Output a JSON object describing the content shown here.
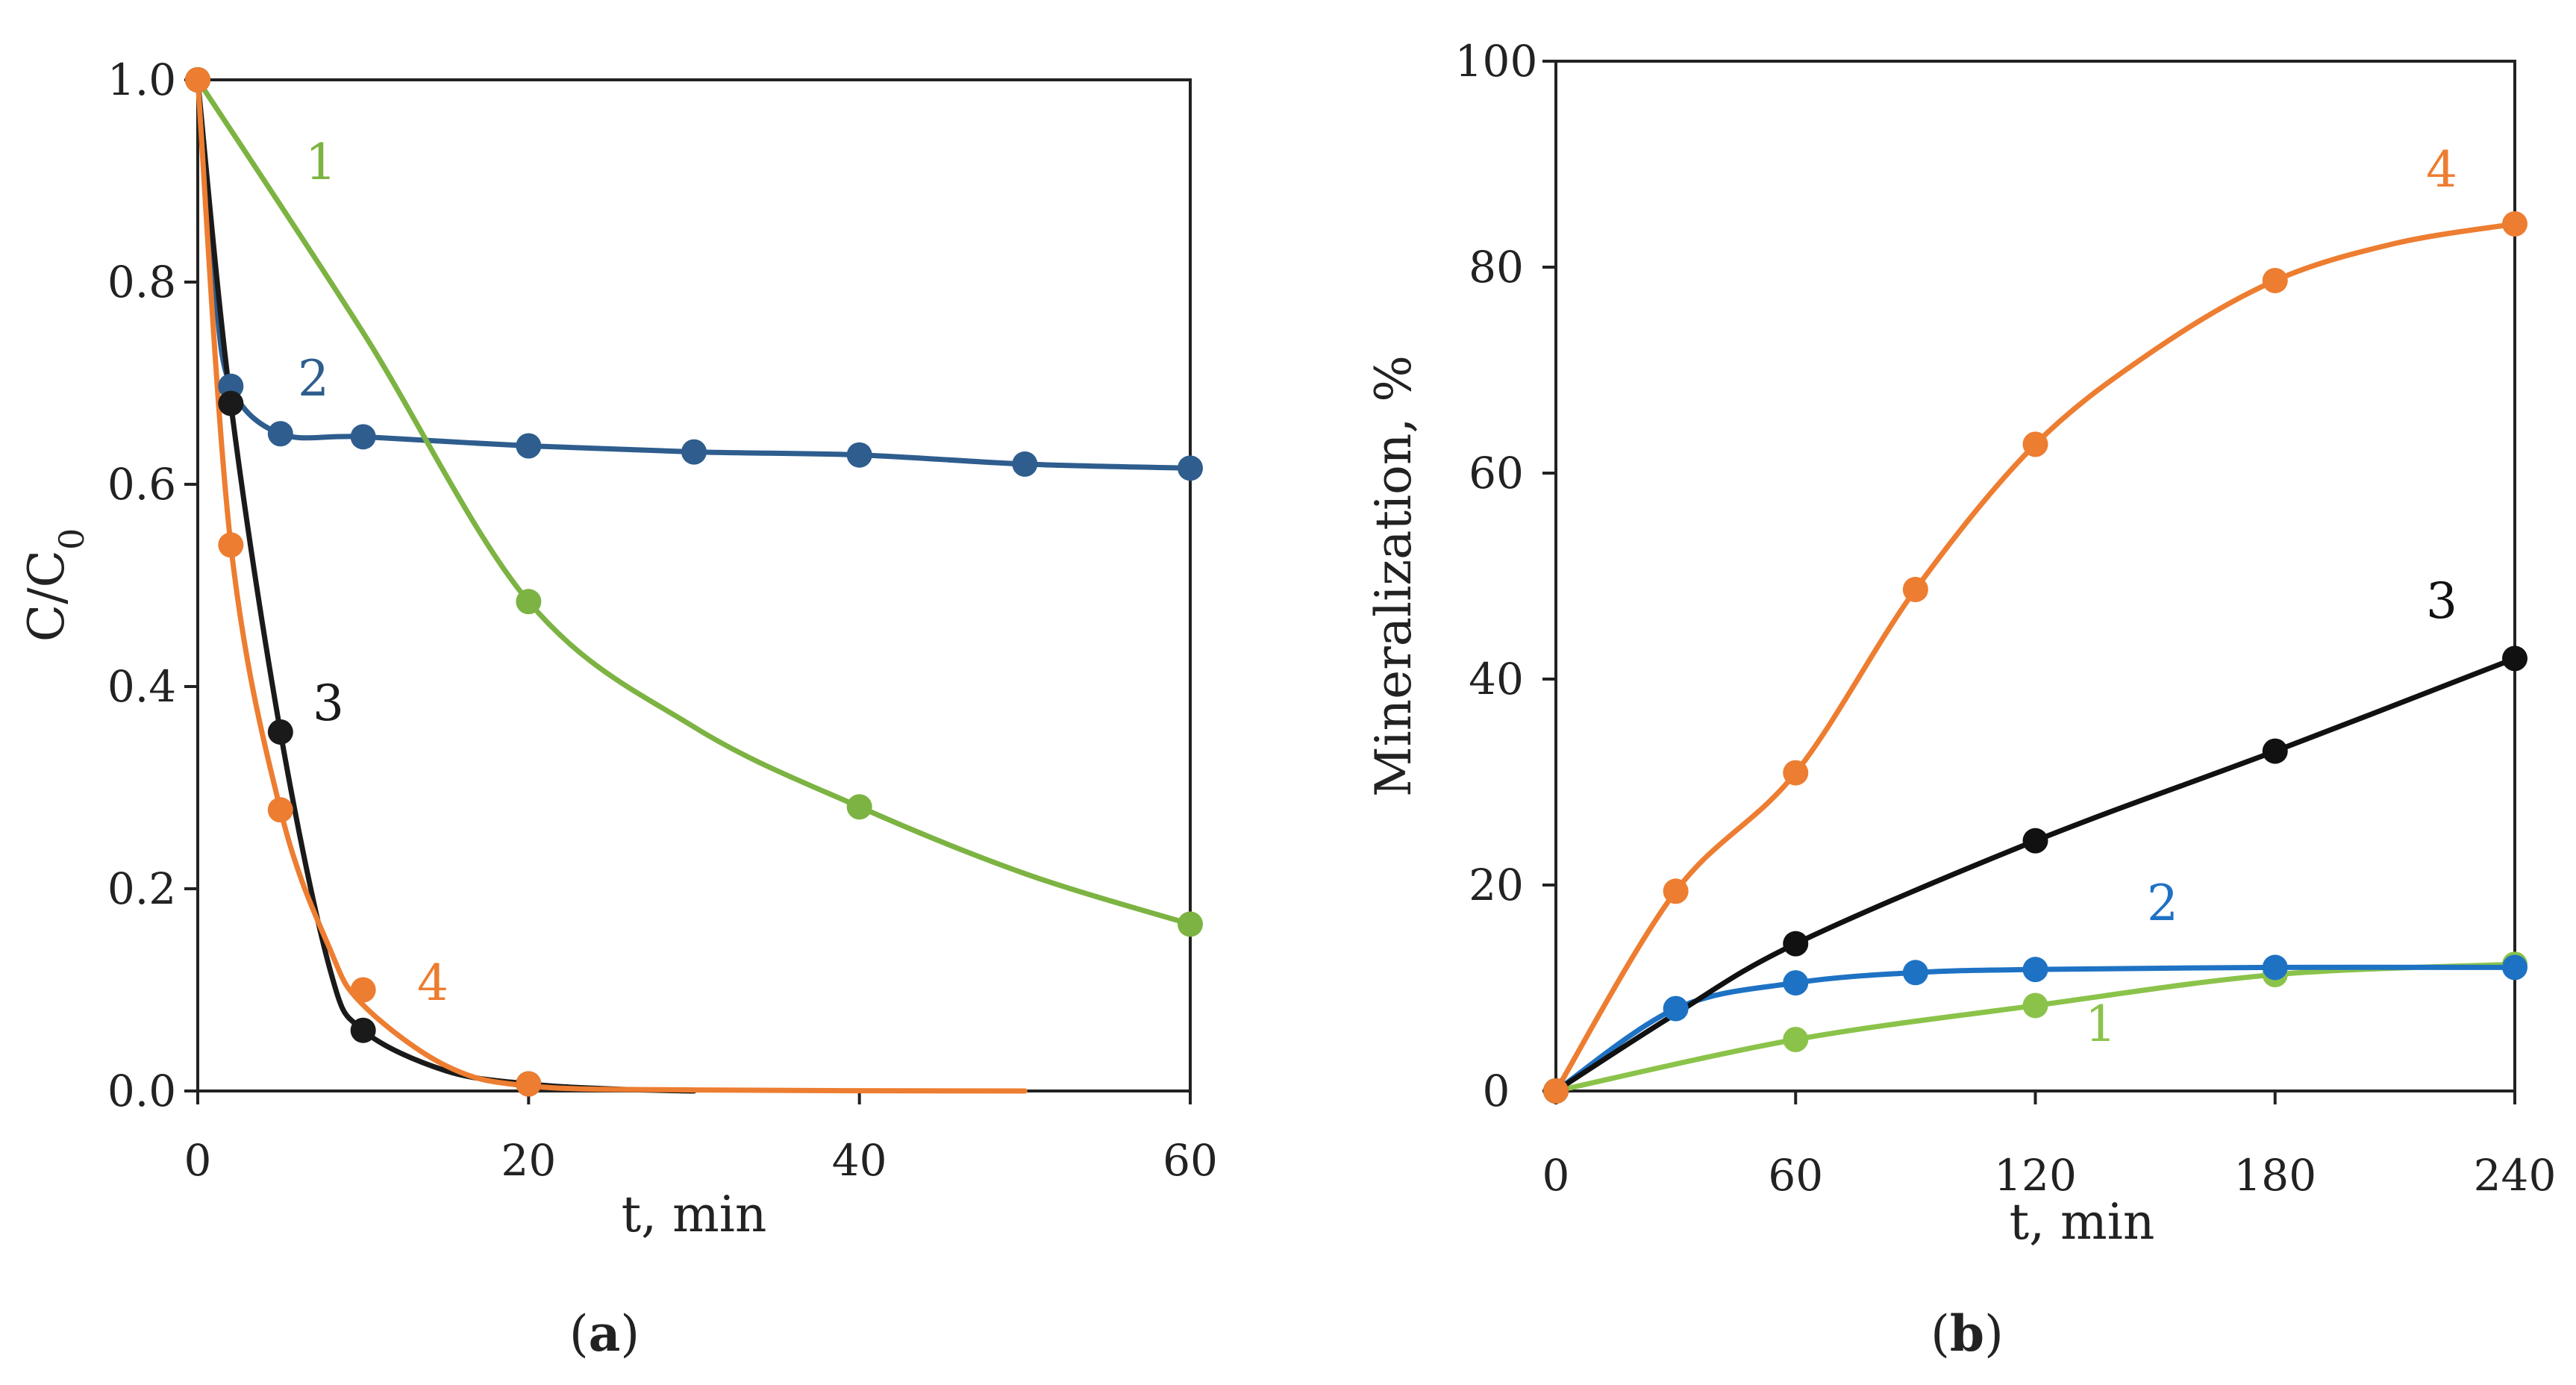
{
  "chart_data": [
    {
      "type": "line",
      "panel_label": {
        "open": "(",
        "letter": "a",
        "close": ")"
      },
      "xlabel": "t, min",
      "ylabel": {
        "main": "C/C",
        "sub": "0"
      },
      "xlim": [
        0,
        60
      ],
      "ylim": [
        0,
        1
      ],
      "xticks": [
        "0",
        "20",
        "40",
        "60"
      ],
      "yticks": [
        "0.0",
        "0.2",
        "0.4",
        "0.6",
        "0.8",
        "1.0"
      ],
      "series": [
        {
          "name": "1",
          "color": "#7cb342",
          "x": [
            0,
            20,
            40,
            60
          ],
          "y": [
            1.0,
            0.484,
            0.281,
            0.165
          ],
          "curve_x": [
            0,
            10,
            20,
            30,
            40,
            50,
            60
          ],
          "curve_y": [
            1.0,
            0.75,
            0.484,
            0.36,
            0.281,
            0.215,
            0.165
          ]
        },
        {
          "name": "2",
          "color": "#2e5d8e",
          "x": [
            0,
            2,
            5,
            10,
            20,
            30,
            40,
            50,
            60
          ],
          "y": [
            1.0,
            0.697,
            0.65,
            0.647,
            0.638,
            0.632,
            0.629,
            0.62,
            0.616
          ],
          "curve_x": [
            0,
            1,
            2,
            5,
            10,
            20,
            30,
            40,
            50,
            60
          ],
          "curve_y": [
            1.0,
            0.8,
            0.697,
            0.65,
            0.647,
            0.638,
            0.632,
            0.629,
            0.62,
            0.616
          ]
        },
        {
          "name": "3",
          "color": "#1a1a1a",
          "x": [
            0,
            2,
            5,
            10,
            20
          ],
          "y": [
            1.0,
            0.68,
            0.355,
            0.06,
            0.007
          ],
          "curve_x": [
            0,
            2,
            5,
            8,
            10,
            15,
            20,
            25,
            30
          ],
          "curve_y": [
            1.0,
            0.68,
            0.355,
            0.12,
            0.06,
            0.02,
            0.007,
            0.002,
            0.0
          ]
        },
        {
          "name": "4",
          "color": "#ed7d31",
          "x": [
            0,
            2,
            5,
            10,
            20
          ],
          "y": [
            1.0,
            0.54,
            0.278,
            0.1,
            0.007
          ],
          "curve_x": [
            0,
            2,
            5,
            8,
            10,
            15,
            20,
            30,
            50
          ],
          "curve_y": [
            1.0,
            0.54,
            0.278,
            0.14,
            0.085,
            0.025,
            0.005,
            0.001,
            0.0
          ]
        }
      ]
    },
    {
      "type": "line",
      "panel_label": {
        "open": "(",
        "letter": "b",
        "close": ")"
      },
      "xlabel": "t, min",
      "ylabel": {
        "main": "Mineralization, %",
        "sub": ""
      },
      "xlim": [
        0,
        240
      ],
      "ylim": [
        0,
        100
      ],
      "xticks": [
        "0",
        "60",
        "120",
        "180",
        "240"
      ],
      "yticks": [
        "0",
        "20",
        "40",
        "60",
        "80",
        "100"
      ],
      "series": [
        {
          "name": "1",
          "color": "#8bc34a",
          "x": [
            0,
            60,
            120,
            180,
            240
          ],
          "y": [
            0,
            5,
            8.3,
            11.3,
            12.3
          ],
          "curve_x": [
            0,
            60,
            120,
            180,
            240
          ],
          "curve_y": [
            0,
            5,
            8.3,
            11.3,
            12.3
          ]
        },
        {
          "name": "2",
          "color": "#1e72c4",
          "x": [
            0,
            30,
            60,
            90,
            120,
            180,
            240
          ],
          "y": [
            0,
            8,
            10.5,
            11.5,
            11.8,
            12,
            12
          ],
          "curve_x": [
            0,
            30,
            60,
            90,
            120,
            180,
            240
          ],
          "curve_y": [
            0,
            8,
            10.5,
            11.5,
            11.8,
            12,
            12
          ]
        },
        {
          "name": "3",
          "color": "#111111",
          "x": [
            0,
            60,
            120,
            180,
            240
          ],
          "y": [
            0,
            14.3,
            24.3,
            33,
            42
          ],
          "curve_x": [
            0,
            30,
            60,
            120,
            180,
            240
          ],
          "curve_y": [
            0,
            7.5,
            14.3,
            24.3,
            33,
            42
          ]
        },
        {
          "name": "4",
          "color": "#ed7d31",
          "x": [
            0,
            30,
            60,
            90,
            120,
            180,
            240
          ],
          "y": [
            0,
            19.4,
            30.9,
            48.7,
            62.8,
            78.7,
            84.2
          ],
          "curve_x": [
            0,
            30,
            60,
            90,
            120,
            150,
            180,
            210,
            240
          ],
          "curve_y": [
            0,
            19.4,
            30.9,
            48.7,
            62.8,
            72,
            78.7,
            82.3,
            84.2
          ]
        }
      ]
    }
  ]
}
